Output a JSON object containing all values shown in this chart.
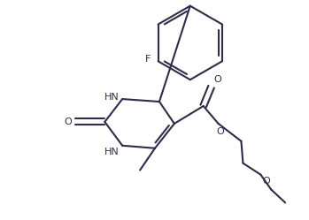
{
  "background_color": "#ffffff",
  "line_color": "#2d2d4a",
  "line_width": 1.5,
  "fig_width": 3.49,
  "fig_height": 2.49,
  "dpi": 100,
  "label_F": "F",
  "label_O_carbonyl": "O",
  "label_O_ester1": "O",
  "label_O_ester2": "O",
  "label_NH1": "HN",
  "label_NH2": "HN",
  "font_size": 8
}
